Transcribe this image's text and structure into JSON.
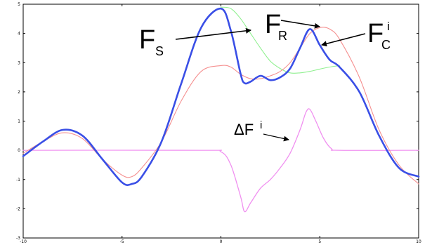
{
  "chart_data": {
    "type": "line",
    "xlim": [
      -10,
      10
    ],
    "ylim": [
      -3,
      5
    ],
    "x_ticks": [
      "-10",
      "-5",
      "0",
      "5",
      "10"
    ],
    "y_ticks": [
      "-3",
      "-2",
      "-1",
      "0",
      "1",
      "2",
      "3",
      "4",
      "5"
    ],
    "grid": false,
    "colors": {
      "blue": "#3a4fe6",
      "red": "#f59090",
      "green": "#90f090",
      "magenta": "#f090f0",
      "axis": "#000000",
      "arrow": "#000000"
    },
    "series": [
      {
        "color": "blue",
        "x": [
          -10,
          -9,
          -8,
          -7,
          -6,
          -5,
          -4.5,
          -4,
          -3,
          -2,
          -1,
          0,
          0.5,
          1,
          1.2,
          1.5,
          2,
          2.5,
          3,
          3.5,
          4,
          4.5,
          5,
          5.5,
          6,
          7,
          8,
          9,
          10
        ],
        "y": [
          -0.2,
          0.3,
          0.7,
          0.5,
          -0.3,
          -1.1,
          -1.15,
          -0.9,
          0.3,
          2.3,
          4.2,
          4.85,
          4.1,
          2.6,
          2.3,
          2.35,
          2.55,
          2.4,
          2.5,
          2.8,
          3.5,
          4.15,
          3.6,
          3.1,
          2.85,
          2.0,
          0.5,
          -0.6,
          -0.9
        ]
      },
      {
        "color": "red",
        "x": [
          -10,
          -9,
          -8,
          -7,
          -6,
          -5,
          -4.5,
          -4,
          -3,
          -2,
          -1,
          0,
          0.5,
          1,
          1.5,
          2,
          2.5,
          3,
          3.5,
          4,
          4.5,
          5,
          5.5,
          6,
          7,
          8,
          9,
          10
        ],
        "y": [
          -0.1,
          0.3,
          0.6,
          0.4,
          -0.3,
          -0.85,
          -0.9,
          -0.6,
          0.3,
          1.7,
          2.7,
          2.9,
          2.85,
          2.6,
          2.45,
          2.45,
          2.55,
          2.7,
          3.0,
          3.5,
          4.0,
          4.2,
          4.15,
          3.8,
          2.5,
          0.7,
          -0.5,
          -1.15
        ]
      },
      {
        "color": "green",
        "x": [
          0,
          0.5,
          1,
          1.5,
          2,
          2.5,
          3,
          3.5,
          4,
          4.5,
          5,
          5.5,
          6
        ],
        "y": [
          4.9,
          4.85,
          4.5,
          4.0,
          3.5,
          3.05,
          2.8,
          2.65,
          2.65,
          2.7,
          2.78,
          2.85,
          2.9
        ]
      },
      {
        "color": "magenta",
        "x": [
          -10,
          -1,
          0,
          0.5,
          1,
          1.2,
          1.5,
          2,
          2.5,
          3,
          3.5,
          4,
          4.3,
          4.5,
          4.8,
          5.2,
          5.6,
          6,
          10
        ],
        "y": [
          0,
          0,
          -0.05,
          -0.5,
          -1.6,
          -2.1,
          -1.8,
          -1.3,
          -1.0,
          -0.6,
          -0.1,
          0.7,
          1.3,
          1.4,
          1.0,
          0.4,
          0.05,
          0,
          0
        ]
      }
    ],
    "annotations": [
      {
        "main": "F",
        "sub": "S"
      },
      {
        "main": "F",
        "sub": "R"
      },
      {
        "main": "F",
        "sub": "C",
        "sup": "i"
      },
      {
        "main": "ΔF",
        "sup": "i"
      }
    ]
  }
}
